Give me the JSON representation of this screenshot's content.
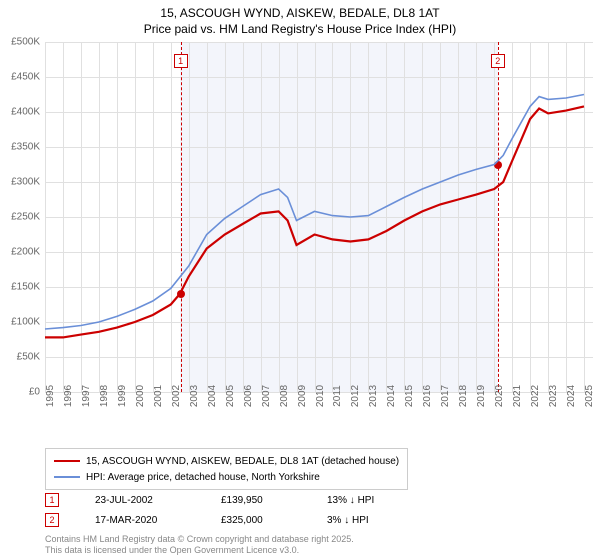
{
  "title_line1": "15, ASCOUGH WYND, AISKEW, BEDALE, DL8 1AT",
  "title_line2": "Price paid vs. HM Land Registry's House Price Index (HPI)",
  "chart": {
    "type": "line",
    "background_color": "#ffffff",
    "shaded_band_color": "#f3f5fb",
    "shaded_band_x_from": 2002.5,
    "shaded_band_x_to": 2020.2,
    "grid_color": "#e0e0e0",
    "xlim": [
      1995,
      2025.5
    ],
    "ylim": [
      0,
      500000
    ],
    "ytick_step": 50000,
    "ytick_labels": [
      "£0",
      "£50K",
      "£100K",
      "£150K",
      "£200K",
      "£250K",
      "£300K",
      "£350K",
      "£400K",
      "£450K",
      "£500K"
    ],
    "xtick_step": 1,
    "xtick_labels": [
      "1995",
      "1996",
      "1997",
      "1998",
      "1999",
      "2000",
      "2001",
      "2002",
      "2003",
      "2004",
      "2005",
      "2006",
      "2007",
      "2008",
      "2009",
      "2010",
      "2011",
      "2012",
      "2013",
      "2014",
      "2015",
      "2016",
      "2017",
      "2018",
      "2019",
      "2020",
      "2021",
      "2022",
      "2023",
      "2024",
      "2025"
    ],
    "series": [
      {
        "name": "15, ASCOUGH WYND, AISKEW, BEDALE, DL8 1AT (detached house)",
        "color": "#cc0000",
        "line_width": 2.2,
        "data": [
          [
            1995,
            78
          ],
          [
            1996,
            78
          ],
          [
            1997,
            82
          ],
          [
            1998,
            86
          ],
          [
            1999,
            92
          ],
          [
            2000,
            100
          ],
          [
            2001,
            110
          ],
          [
            2002,
            125
          ],
          [
            2002.5,
            140
          ],
          [
            2003,
            165
          ],
          [
            2004,
            205
          ],
          [
            2005,
            225
          ],
          [
            2006,
            240
          ],
          [
            2007,
            255
          ],
          [
            2008,
            258
          ],
          [
            2008.5,
            245
          ],
          [
            2009,
            210
          ],
          [
            2010,
            225
          ],
          [
            2011,
            218
          ],
          [
            2012,
            215
          ],
          [
            2013,
            218
          ],
          [
            2014,
            230
          ],
          [
            2015,
            245
          ],
          [
            2016,
            258
          ],
          [
            2017,
            268
          ],
          [
            2018,
            275
          ],
          [
            2019,
            282
          ],
          [
            2020,
            290
          ],
          [
            2020.5,
            300
          ],
          [
            2021,
            330
          ],
          [
            2022,
            390
          ],
          [
            2022.5,
            405
          ],
          [
            2023,
            398
          ],
          [
            2024,
            402
          ],
          [
            2025,
            408
          ]
        ]
      },
      {
        "name": "HPI: Average price, detached house, North Yorkshire",
        "color": "#6a8fd8",
        "line_width": 1.6,
        "data": [
          [
            1995,
            90
          ],
          [
            1996,
            92
          ],
          [
            1997,
            95
          ],
          [
            1998,
            100
          ],
          [
            1999,
            108
          ],
          [
            2000,
            118
          ],
          [
            2001,
            130
          ],
          [
            2002,
            148
          ],
          [
            2003,
            180
          ],
          [
            2004,
            225
          ],
          [
            2005,
            248
          ],
          [
            2006,
            265
          ],
          [
            2007,
            282
          ],
          [
            2008,
            290
          ],
          [
            2008.5,
            278
          ],
          [
            2009,
            245
          ],
          [
            2010,
            258
          ],
          [
            2011,
            252
          ],
          [
            2012,
            250
          ],
          [
            2013,
            252
          ],
          [
            2014,
            265
          ],
          [
            2015,
            278
          ],
          [
            2016,
            290
          ],
          [
            2017,
            300
          ],
          [
            2018,
            310
          ],
          [
            2019,
            318
          ],
          [
            2020,
            325
          ],
          [
            2020.5,
            338
          ],
          [
            2021,
            362
          ],
          [
            2022,
            408
          ],
          [
            2022.5,
            422
          ],
          [
            2023,
            418
          ],
          [
            2024,
            420
          ],
          [
            2025,
            425
          ]
        ]
      }
    ],
    "sale_markers": [
      {
        "num": "1",
        "x": 2002.55,
        "y": 140,
        "color": "#cc0000"
      },
      {
        "num": "2",
        "x": 2020.2,
        "y": 325,
        "color": "#cc0000"
      }
    ],
    "marker_box_color": "#cc0000",
    "legend": {
      "border_color": "#cccccc"
    }
  },
  "data_points": [
    {
      "num": "1",
      "date": "23-JUL-2002",
      "price": "£139,950",
      "pct": "13% ↓ HPI",
      "color": "#cc0000"
    },
    {
      "num": "2",
      "date": "17-MAR-2020",
      "price": "£325,000",
      "pct": "3% ↓ HPI",
      "color": "#cc0000"
    }
  ],
  "attribution_line1": "Contains HM Land Registry data © Crown copyright and database right 2025.",
  "attribution_line2": "This data is licensed under the Open Government Licence v3.0."
}
